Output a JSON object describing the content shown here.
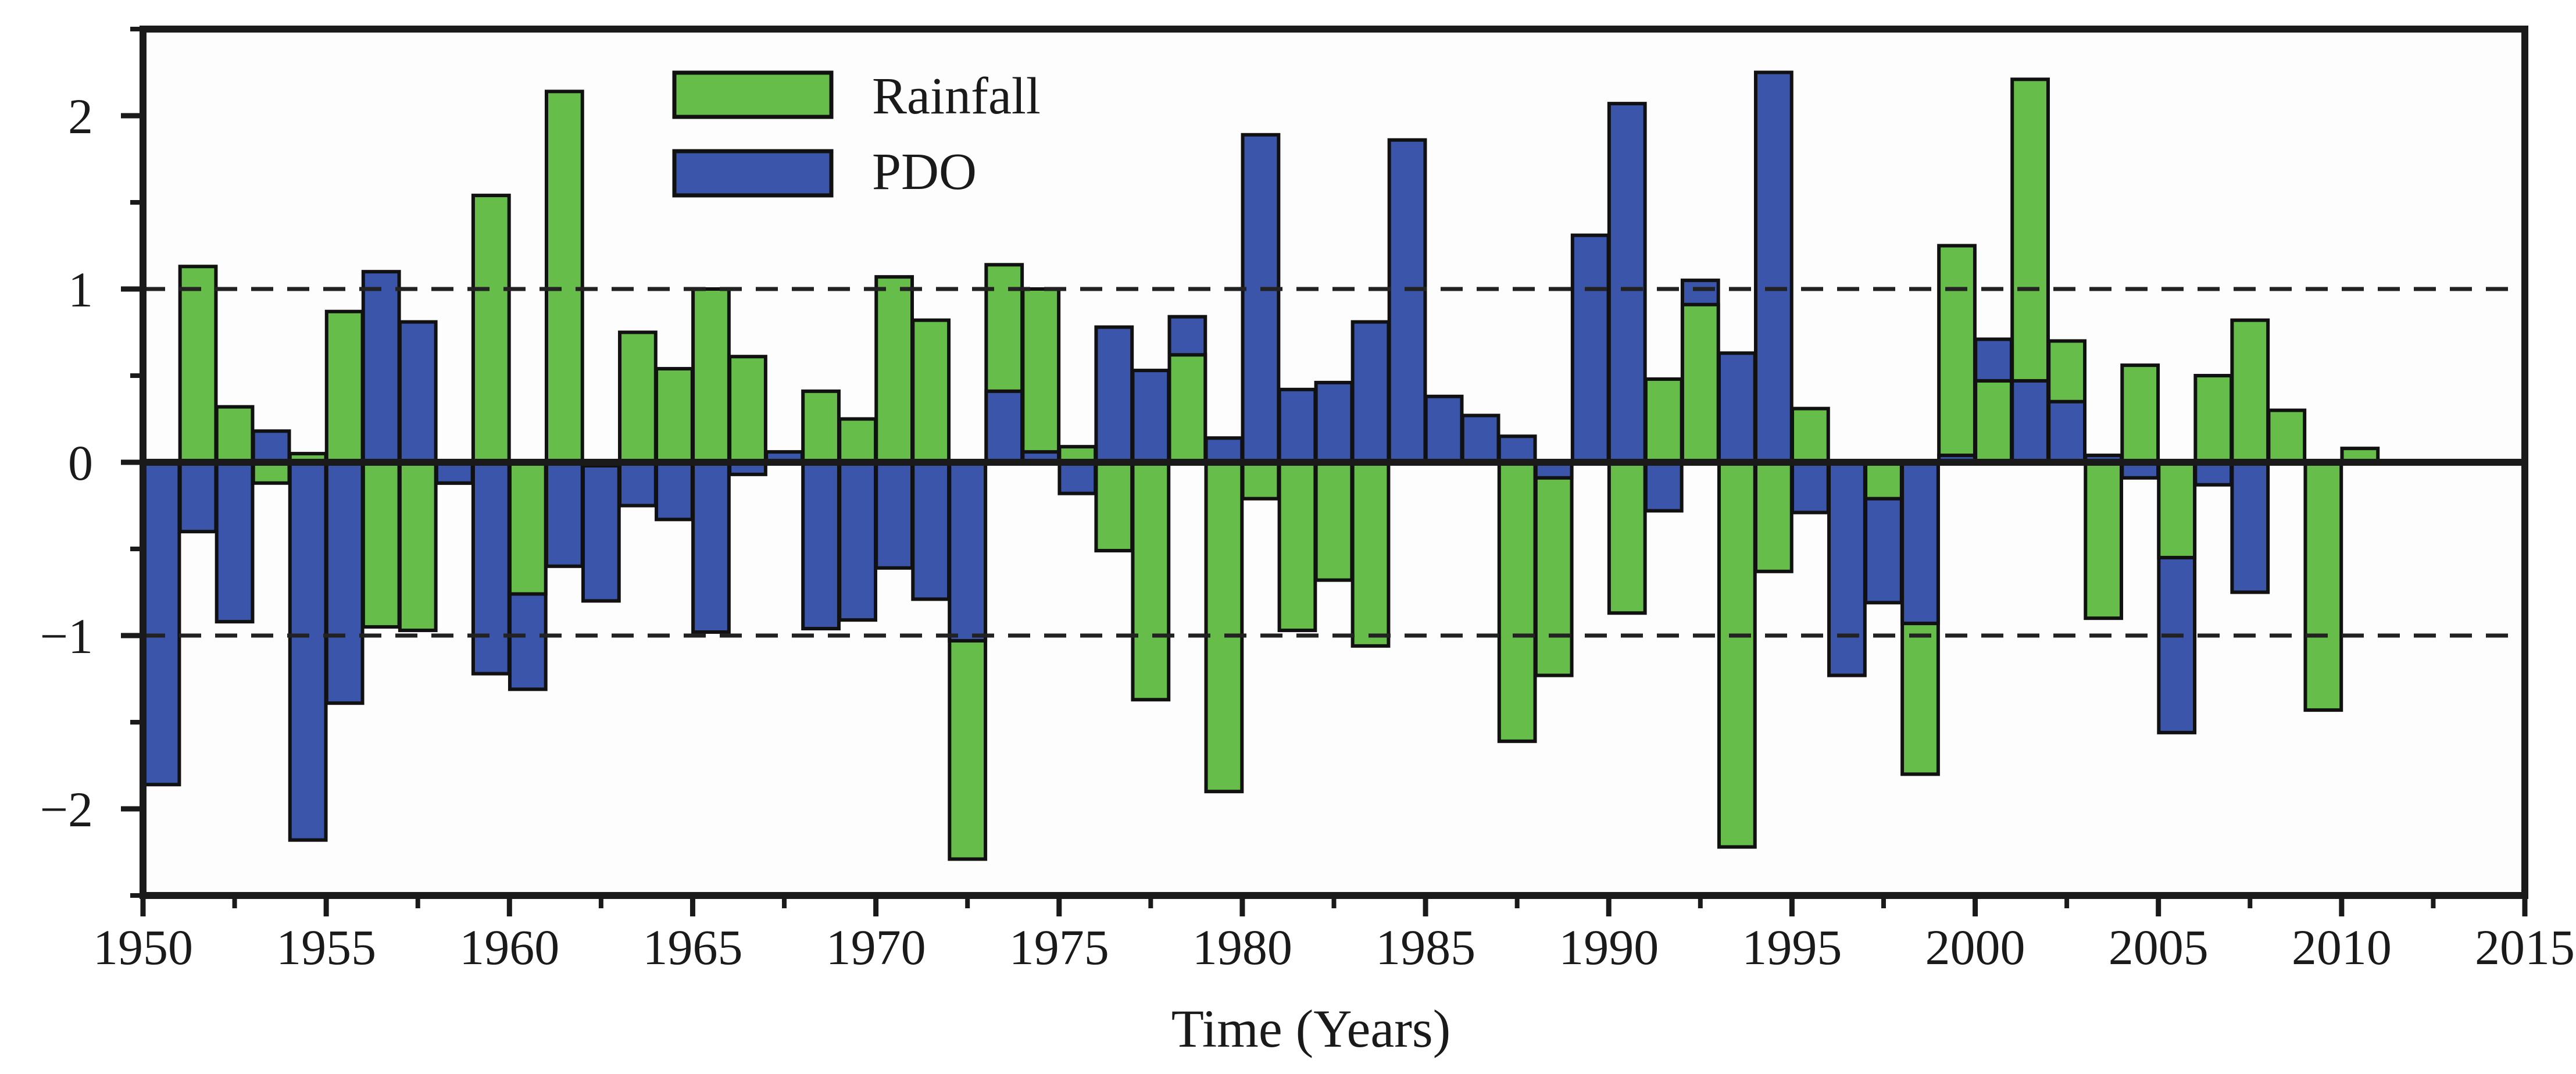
{
  "chart_data": {
    "type": "bar",
    "title": "",
    "xlabel": "Time (Years)",
    "ylabel": "",
    "xlim": [
      1950,
      2015
    ],
    "ylim": [
      -2.5,
      2.5
    ],
    "y_ticks": [
      -2,
      -1,
      0,
      1,
      2
    ],
    "y_tick_labels": [
      "−2",
      "−1",
      "0",
      "1",
      "2"
    ],
    "x_ticks": [
      1950,
      1955,
      1960,
      1965,
      1970,
      1975,
      1980,
      1985,
      1990,
      1995,
      2000,
      2005,
      2010,
      2015
    ],
    "x_tick_labels": [
      "1950",
      "1955",
      "1960",
      "1965",
      "1970",
      "1975",
      "1980",
      "1985",
      "1990",
      "1995",
      "2000",
      "2005",
      "2010",
      "2015"
    ],
    "reference_lines": [
      1,
      -1
    ],
    "legend_position": "top-left",
    "colors": {
      "rainfall": "#66bd4a",
      "pdo": "#3a55aa",
      "edge": "#111111",
      "axis": "#1a1a1a",
      "background": "#fdfdfd"
    },
    "years": [
      1950,
      1951,
      1952,
      1953,
      1954,
      1955,
      1956,
      1957,
      1958,
      1959,
      1960,
      1961,
      1962,
      1963,
      1964,
      1965,
      1966,
      1967,
      1968,
      1969,
      1970,
      1971,
      1972,
      1973,
      1974,
      1975,
      1976,
      1977,
      1978,
      1979,
      1980,
      1981,
      1982,
      1983,
      1984,
      1985,
      1986,
      1987,
      1988,
      1989,
      1990,
      1991,
      1992,
      1993,
      1994,
      1995,
      1996,
      1997,
      1998,
      1999,
      2000,
      2001,
      2002,
      2003,
      2004,
      2005,
      2006,
      2007,
      2008,
      2009,
      2010,
      2011,
      2012,
      2013,
      2014,
      2015
    ],
    "series": [
      {
        "name": "Rainfall",
        "color_key": "rainfall",
        "values": [
          0,
          1.13,
          0.32,
          -0.12,
          0.05,
          0.87,
          -0.95,
          -0.97,
          -0.12,
          1.54,
          -0.76,
          2.14,
          -0.02,
          0.75,
          0.54,
          1.0,
          0.61,
          -0.01,
          0.41,
          0.25,
          1.07,
          0.82,
          -2.29,
          1.14,
          1.0,
          0.09,
          -0.51,
          -1.37,
          0.62,
          -1.9,
          -0.21,
          -0.97,
          -0.68,
          -1.06,
          0.0,
          0.0,
          0.0,
          -1.61,
          -1.23,
          0.0,
          -0.87,
          0.48,
          0.91,
          -2.22,
          -0.63,
          0.31,
          0.0,
          -0.21,
          -1.8,
          1.25,
          0.47,
          2.21,
          0.7,
          -0.9,
          0.56,
          -0.55,
          0.5,
          0.82,
          0.3,
          -1.43,
          0.08,
          0,
          0,
          0,
          0,
          0
        ]
      },
      {
        "name": "PDO",
        "color_key": "pdo",
        "values": [
          -1.86,
          -0.4,
          -0.92,
          0.18,
          -2.18,
          -1.39,
          1.1,
          0.81,
          -0.12,
          -1.22,
          -1.31,
          -0.6,
          -0.8,
          -0.25,
          -0.33,
          -0.98,
          -0.07,
          0.06,
          -0.96,
          -0.91,
          -0.61,
          -0.79,
          -1.03,
          0.41,
          0.06,
          -0.18,
          0.78,
          0.53,
          0.84,
          0.14,
          1.89,
          0.42,
          0.46,
          0.81,
          1.86,
          0.38,
          0.27,
          0.15,
          -0.09,
          1.31,
          2.07,
          -0.28,
          1.05,
          0.63,
          2.25,
          -0.29,
          -1.23,
          -0.81,
          -0.93,
          0.04,
          0.71,
          0.47,
          0.35,
          0.04,
          -0.09,
          -1.56,
          -0.13,
          -0.75,
          0,
          0,
          0,
          0,
          0,
          0,
          0,
          0
        ]
      }
    ]
  }
}
